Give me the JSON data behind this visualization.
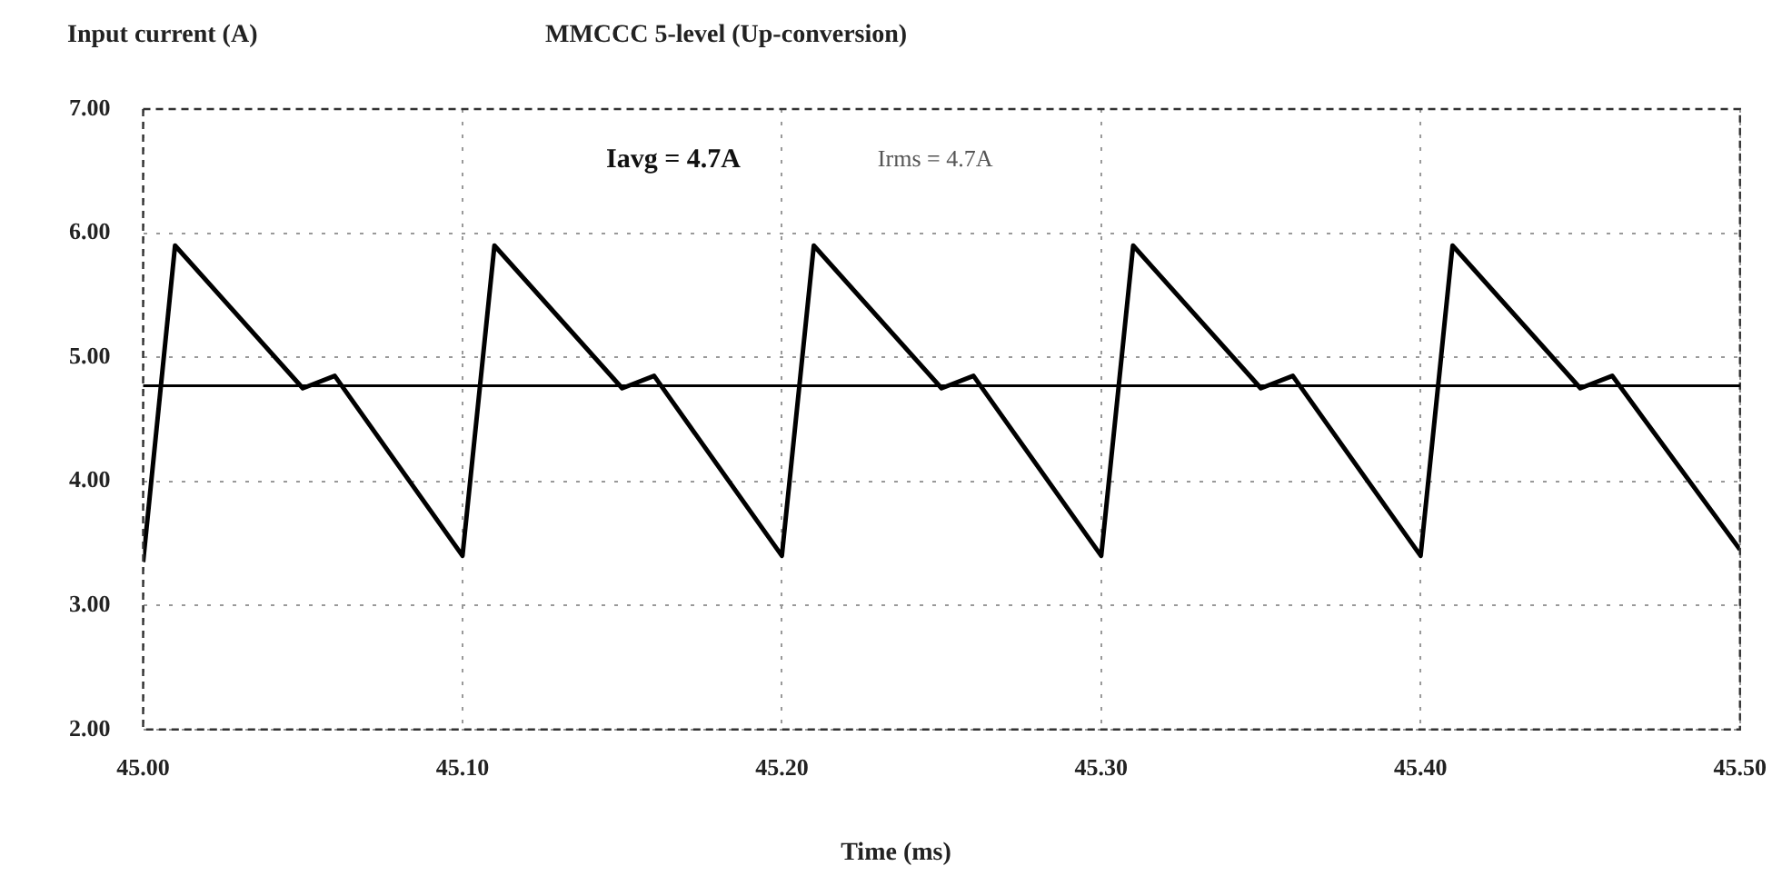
{
  "chart_data": {
    "type": "line",
    "title": "MMCCC 5-level (Up-conversion)",
    "ylabel": "Input current (A)",
    "xlabel": "Time (ms)",
    "annotations": [
      "Iavg = 4.7A",
      "Irms = 4.7A"
    ],
    "x": [
      45.0,
      45.01,
      45.05,
      45.06,
      45.1,
      45.11,
      45.15,
      45.16,
      45.2,
      45.21,
      45.25,
      45.26,
      45.3,
      45.31,
      45.35,
      45.36,
      45.4,
      45.41,
      45.45,
      45.46,
      45.5
    ],
    "series": [
      {
        "color": "#000000",
        "values": [
          3.35,
          5.9,
          4.75,
          4.85,
          3.4,
          5.9,
          4.75,
          4.85,
          3.4,
          5.9,
          4.75,
          4.85,
          3.4,
          5.9,
          4.75,
          4.85,
          3.4,
          5.9,
          4.75,
          4.85,
          3.45
        ]
      }
    ],
    "xlim": [
      45.0,
      45.5
    ],
    "xticks": [
      {
        "value": 45.0,
        "label": "45.00"
      },
      {
        "value": 45.1,
        "label": "45.10"
      },
      {
        "value": 45.2,
        "label": "45.20"
      },
      {
        "value": 45.3,
        "label": "45.30"
      },
      {
        "value": 45.4,
        "label": "45.40"
      },
      {
        "value": 45.5,
        "label": "45.50"
      }
    ],
    "ylim": [
      2,
      7
    ],
    "yticks": [
      {
        "value": 2,
        "label": "2.00"
      },
      {
        "value": 3,
        "label": "3.00"
      },
      {
        "value": 4,
        "label": "4.00"
      },
      {
        "value": 5,
        "label": "5.00"
      },
      {
        "value": 6,
        "label": "6.00"
      },
      {
        "value": 7,
        "label": "7.00"
      }
    ],
    "ref_lines": [
      {
        "axis": "y",
        "value": 4.77,
        "color": "#000000"
      }
    ],
    "grid": true,
    "legend": false,
    "marker": "none",
    "line_style": "solid"
  }
}
